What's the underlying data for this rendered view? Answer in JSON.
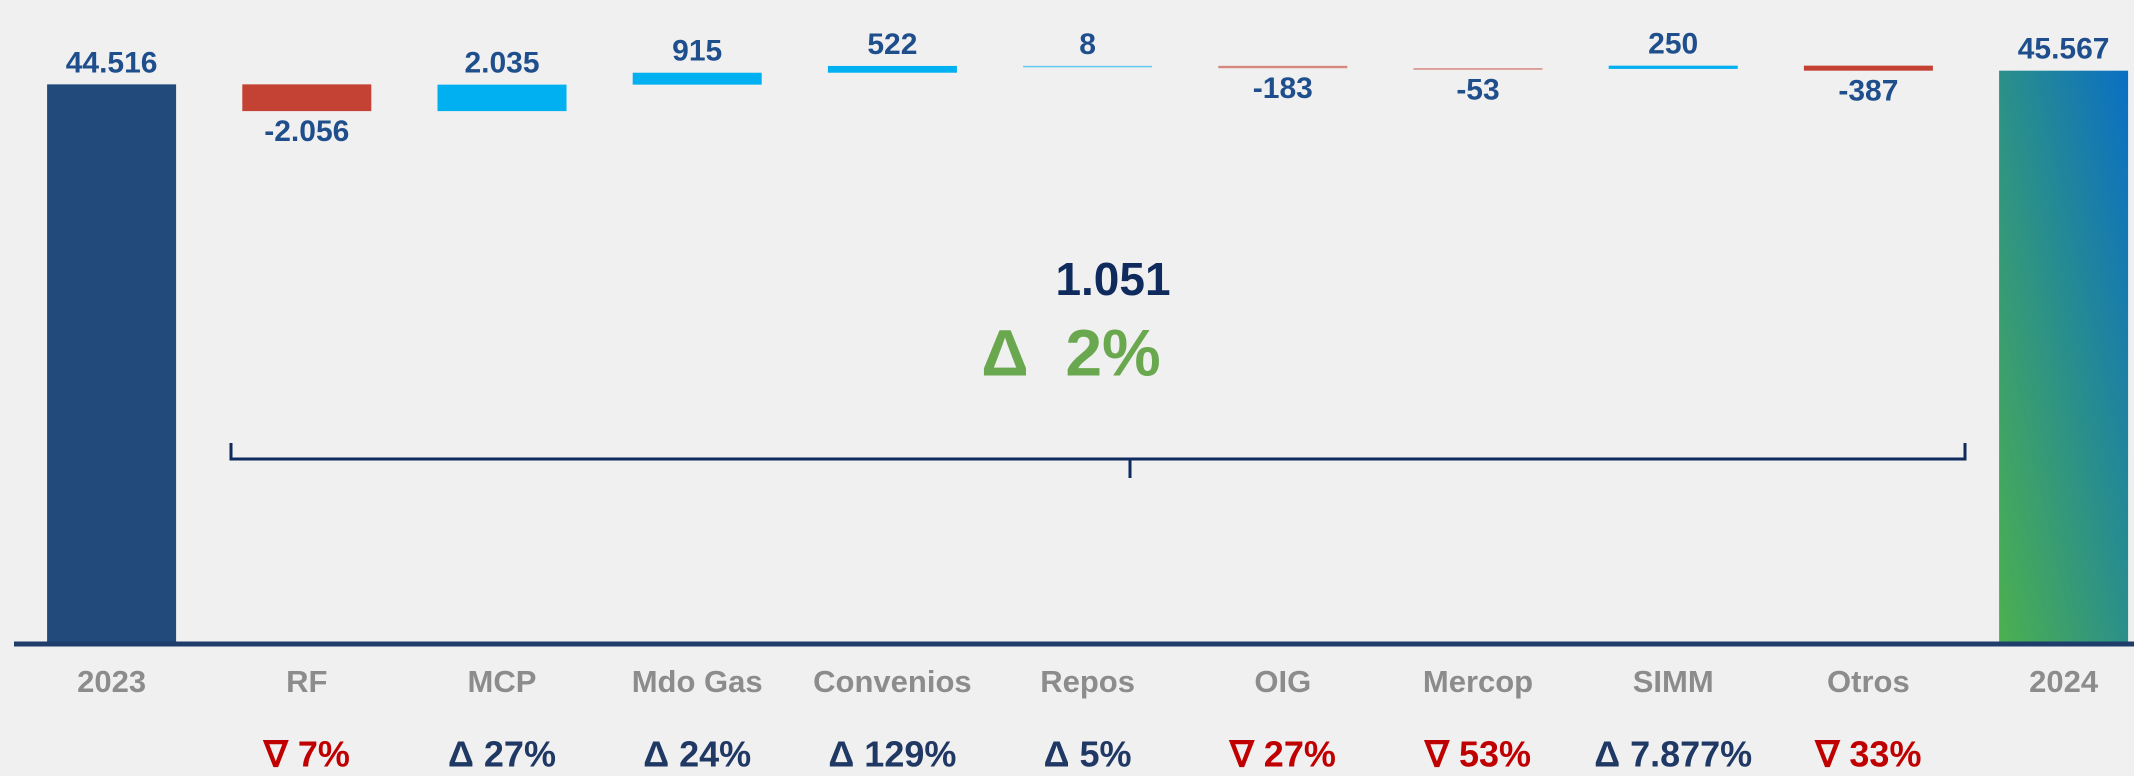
{
  "chart_data": {
    "type": "waterfall",
    "categories": [
      "2023",
      "RF",
      "MCP",
      "Mdo Gas",
      "Convenios",
      "Repos",
      "OIG",
      "Mercop",
      "SIMM",
      "Otros",
      "2024"
    ],
    "values": [
      44516,
      -2056,
      2035,
      915,
      522,
      8,
      -183,
      -53,
      250,
      -387,
      45567
    ],
    "value_labels": [
      "44.516",
      "-2.056",
      "2.035",
      "915",
      "522",
      "8",
      "-183",
      "-53",
      "250",
      "-387",
      "45.567"
    ],
    "totals": [
      true,
      false,
      false,
      false,
      false,
      false,
      false,
      false,
      false,
      false,
      true
    ],
    "change_labels": [
      null,
      "∇ 7%",
      "Δ 27%",
      "Δ 24%",
      "Δ 129%",
      "Δ 5%",
      "∇ 27%",
      "∇ 53%",
      "Δ 7.877%",
      "∇ 33%",
      null
    ],
    "colors": {
      "start": "#224a7a",
      "increase": "#00b0f0",
      "decrease": "#c44234",
      "end_top": "#0a6fc4",
      "end_bottom": "#4cb04f",
      "change_up": "#1f3864",
      "change_down": "#c00000"
    },
    "ylim": [
      1500,
      51000
    ],
    "annotations": [
      "1.051",
      "Δ  2%"
    ]
  }
}
